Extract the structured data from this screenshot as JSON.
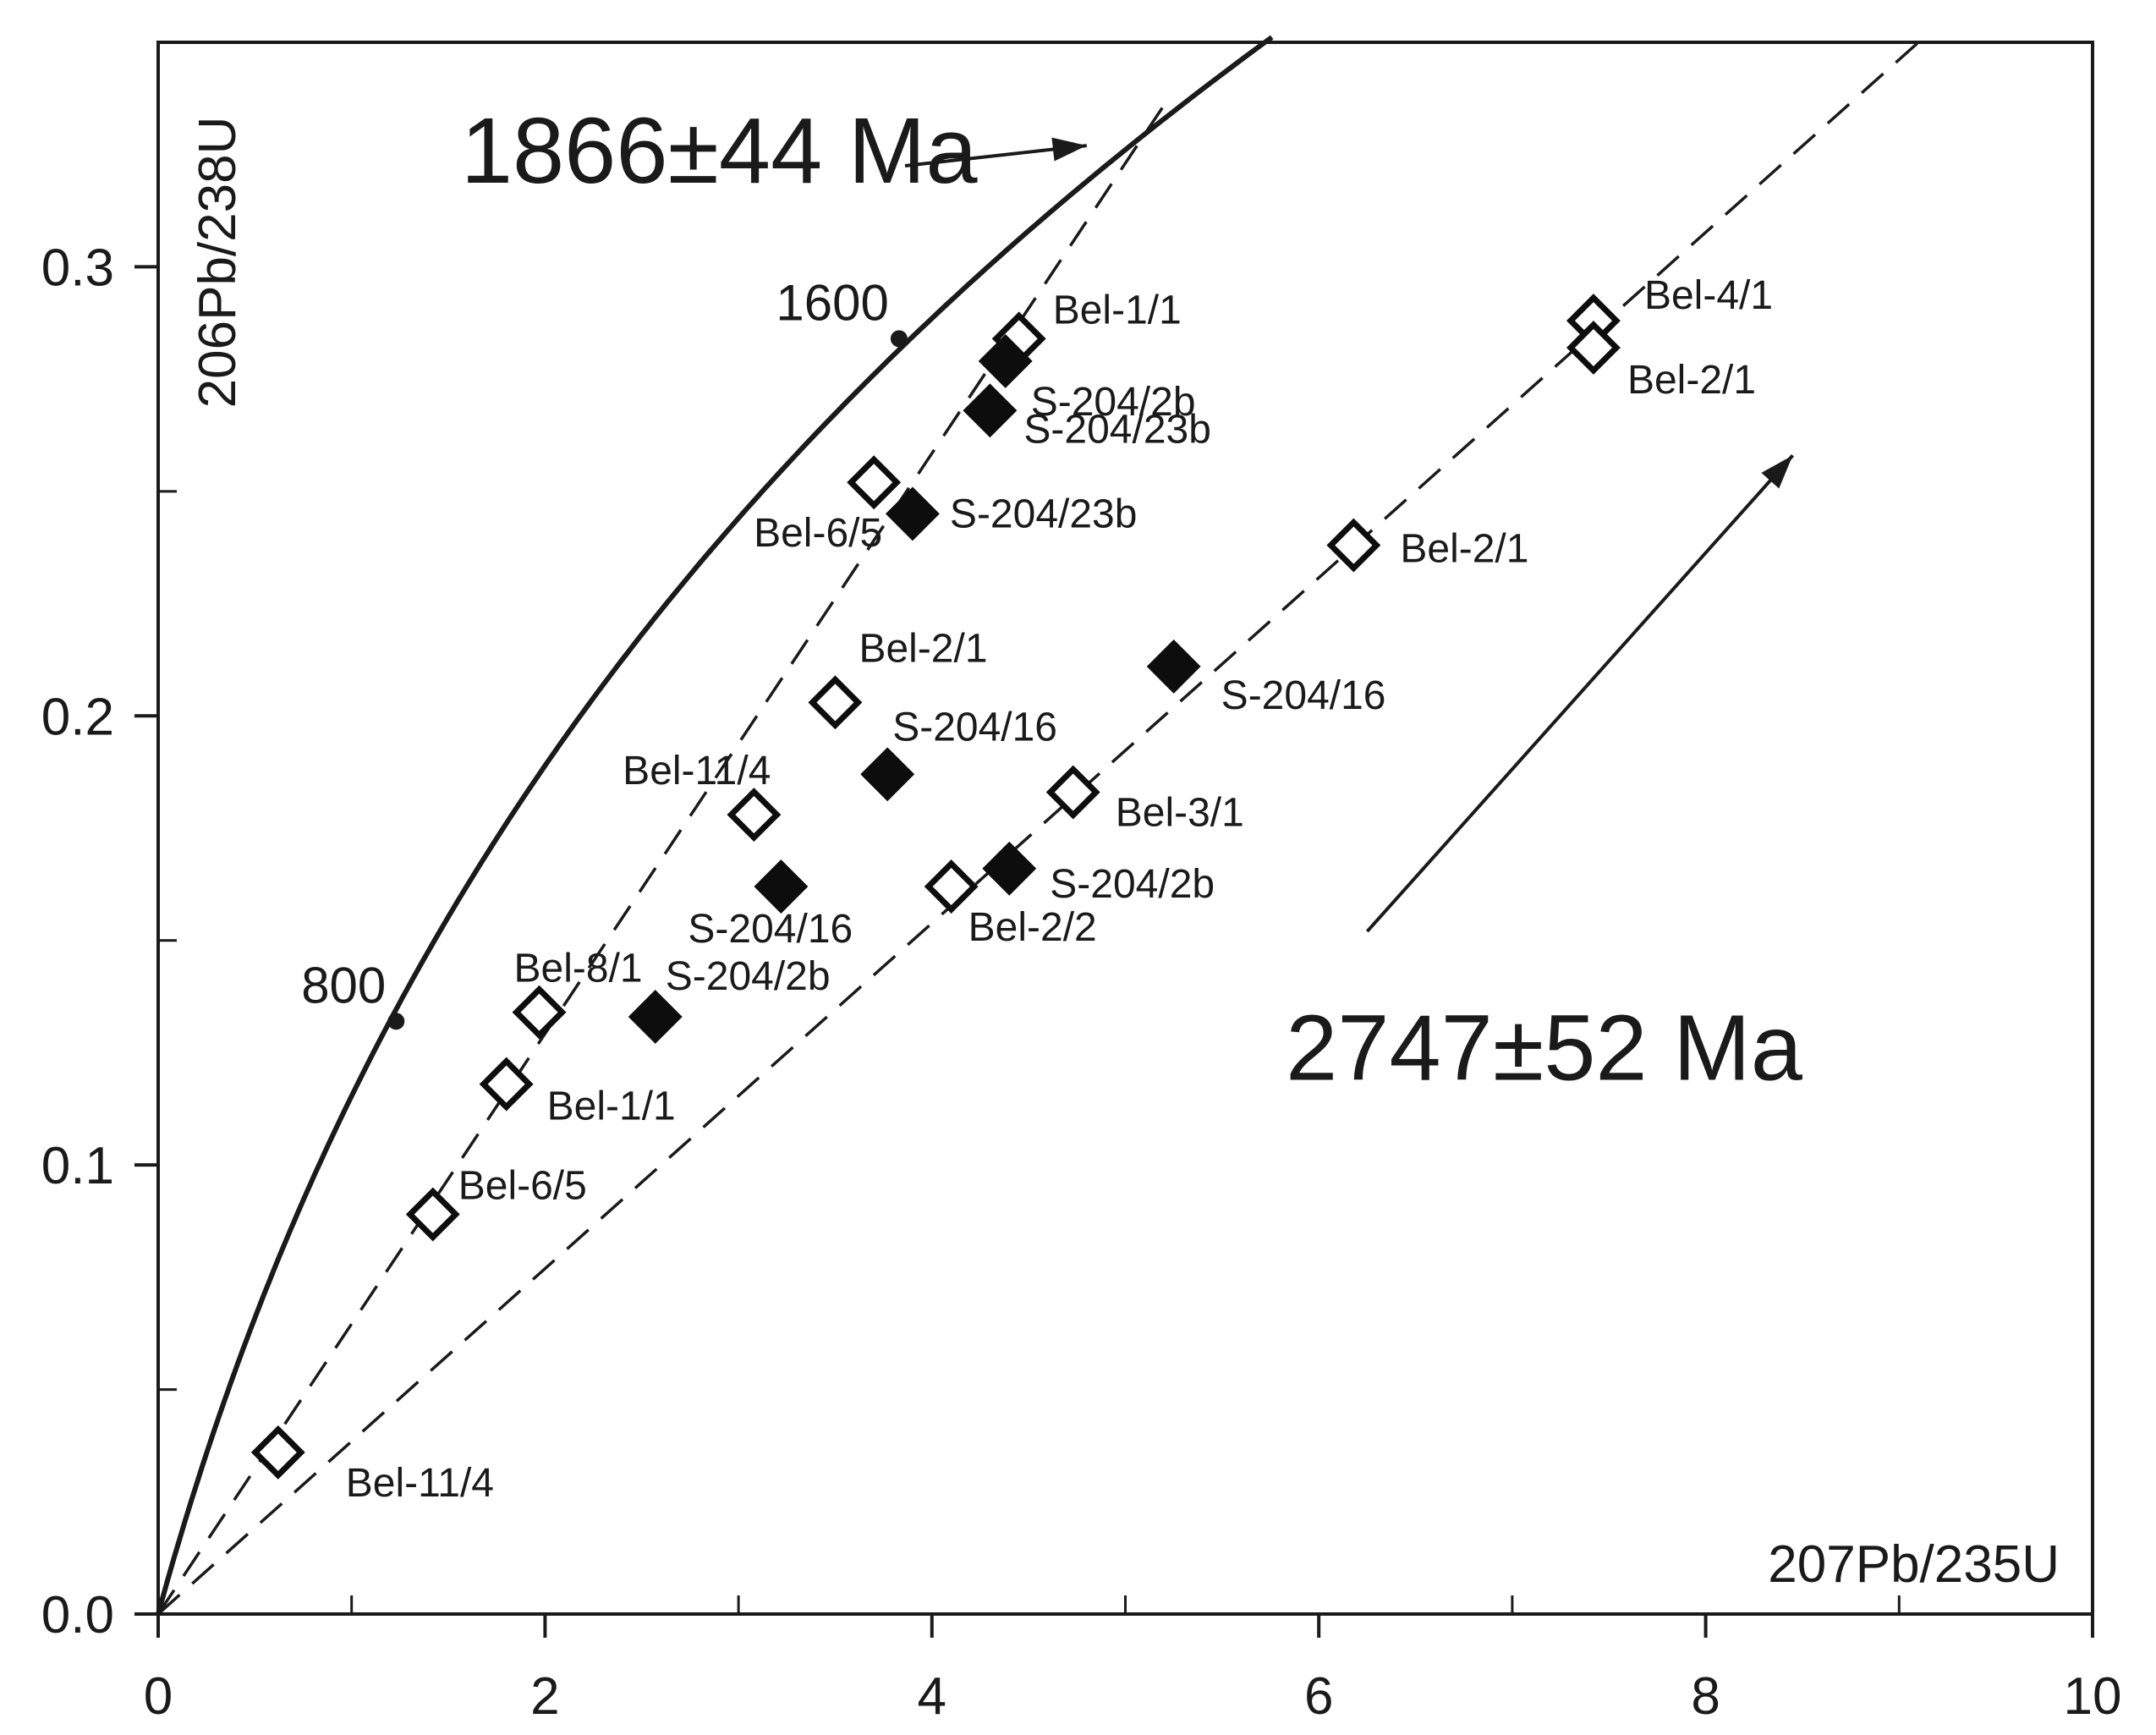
{
  "chart_data": {
    "type": "scatter",
    "title": "",
    "xlabel": "207Pb/235U",
    "ylabel": "206Pb/238U",
    "xlim": [
      0,
      10
    ],
    "ylim": [
      0,
      0.35
    ],
    "x_ticks": [
      {
        "value": 0,
        "label": "0"
      },
      {
        "value": 2,
        "label": "2"
      },
      {
        "value": 4,
        "label": "4"
      },
      {
        "value": 6,
        "label": "6"
      },
      {
        "value": 8,
        "label": "8"
      },
      {
        "value": 10,
        "label": "10"
      }
    ],
    "y_ticks": [
      {
        "value": 0.0,
        "label": "0.0"
      },
      {
        "value": 0.1,
        "label": "0.1"
      },
      {
        "value": 0.2,
        "label": "0.2"
      },
      {
        "value": 0.3,
        "label": "0.3"
      }
    ],
    "x_minor_ticks": [
      1,
      3,
      5,
      7,
      9
    ],
    "y_minor_ticks": [
      0.05,
      0.15,
      0.25
    ],
    "concordia": {
      "age_markers": [
        {
          "label": "800",
          "x": 1.23,
          "y": 0.132
        },
        {
          "label": "1600",
          "x": 3.83,
          "y": 0.284
        }
      ]
    },
    "discordia_lines": [
      {
        "name": "1866±44 Ma",
        "x0": 0,
        "y0": 0,
        "x1": 5.2,
        "y1": 0.336
      },
      {
        "name": "2747±52 Ma",
        "x0": 0,
        "y0": 0,
        "x1": 9.1,
        "y1": 0.35
      }
    ],
    "annotations": [
      {
        "text": "1866±44 Ma",
        "x": 2.9,
        "y": 0.324,
        "arrow_to": [
          4.8,
          0.327
        ]
      },
      {
        "text": "2747±52 Ma",
        "x": 8.5,
        "y": 0.128,
        "arrow_from": [
          6.25,
          0.152
        ],
        "arrow_to": [
          8.45,
          0.258
        ]
      }
    ],
    "series": [
      {
        "name": "Bel",
        "marker": "open-diamond",
        "points": [
          {
            "label": "Bel-1/1",
            "x": 4.45,
            "y": 0.284
          },
          {
            "label": "Bel-6/5",
            "x": 3.7,
            "y": 0.252
          },
          {
            "label": "Bel-4/1",
            "x": 7.42,
            "y": 0.288
          },
          {
            "label": "Bel-2/1",
            "x": 7.42,
            "y": 0.282
          },
          {
            "label": "Bel-2/1",
            "x": 6.18,
            "y": 0.238
          },
          {
            "label": "Bel-2/1",
            "x": 3.5,
            "y": 0.203
          },
          {
            "label": "Bel-11/4",
            "x": 3.08,
            "y": 0.178
          },
          {
            "label": "Bel-3/1",
            "x": 4.73,
            "y": 0.183
          },
          {
            "label": "Bel-2/2",
            "x": 4.1,
            "y": 0.162
          },
          {
            "label": "Bel-8/1",
            "x": 1.97,
            "y": 0.134
          },
          {
            "label": "Bel-1/1",
            "x": 1.8,
            "y": 0.118
          },
          {
            "label": "Bel-6/5",
            "x": 1.42,
            "y": 0.089
          },
          {
            "label": "Bel-11/4",
            "x": 0.62,
            "y": 0.036
          }
        ]
      },
      {
        "name": "S-204",
        "marker": "filled-diamond",
        "points": [
          {
            "label": "S-204/2b",
            "x": 4.38,
            "y": 0.279
          },
          {
            "label": "S-204/23b",
            "x": 4.3,
            "y": 0.268
          },
          {
            "label": "S-204/23b",
            "x": 3.9,
            "y": 0.245
          },
          {
            "label": "S-204/16",
            "x": 5.25,
            "y": 0.211
          },
          {
            "label": "S-204/16",
            "x": 3.77,
            "y": 0.187
          },
          {
            "label": "S-204/2b",
            "x": 4.4,
            "y": 0.166
          },
          {
            "label": "S-204/16",
            "x": 3.22,
            "y": 0.162
          },
          {
            "label": "S-204/2b",
            "x": 2.57,
            "y": 0.133
          }
        ]
      }
    ]
  }
}
